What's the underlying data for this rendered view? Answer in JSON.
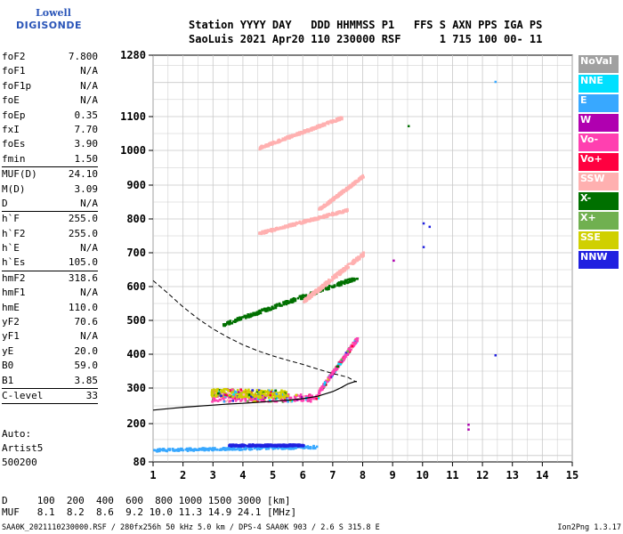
{
  "logo": {
    "line1": "Lowell",
    "line2": "DIGISONDE"
  },
  "header": {
    "line1": "Station YYYY DAY   DDD HHMMSS P1   FFS S AXN PPS IGA PS",
    "line2": "SaoLuis 2021 Apr20 110 230000 RSF      1 715 100 00- 11"
  },
  "params": {
    "group1": [
      {
        "k": "foF2",
        "v": "7.800"
      },
      {
        "k": "foF1",
        "v": "N/A"
      },
      {
        "k": "foF1p",
        "v": "N/A"
      },
      {
        "k": "foE",
        "v": "N/A"
      },
      {
        "k": "foEp",
        "v": "0.35"
      },
      {
        "k": "fxI",
        "v": "7.70"
      },
      {
        "k": "foEs",
        "v": "3.90"
      },
      {
        "k": "fmin",
        "v": "1.50"
      }
    ],
    "group2": [
      {
        "k": "MUF(D)",
        "v": "24.10"
      },
      {
        "k": "M(D)",
        "v": "3.09"
      },
      {
        "k": "D",
        "v": "N/A"
      }
    ],
    "group3": [
      {
        "k": "h`F",
        "v": "255.0"
      },
      {
        "k": "h`F2",
        "v": "255.0"
      },
      {
        "k": "h`E",
        "v": "N/A"
      },
      {
        "k": "h`Es",
        "v": "105.0"
      }
    ],
    "group4": [
      {
        "k": "hmF2",
        "v": "318.6"
      },
      {
        "k": "hmF1",
        "v": "N/A"
      },
      {
        "k": "hmE",
        "v": "110.0"
      },
      {
        "k": "yF2",
        "v": "70.6"
      },
      {
        "k": "yF1",
        "v": "N/A"
      },
      {
        "k": "yE",
        "v": "20.0"
      },
      {
        "k": "B0",
        "v": "59.0"
      },
      {
        "k": "B1",
        "v": "3.85"
      }
    ],
    "group5": [
      {
        "k": "C-level",
        "v": "33"
      }
    ]
  },
  "artist": {
    "line1": "Auto:",
    "line2": "Artist5",
    "line3": "500200"
  },
  "bottom_table": {
    "d_row": "D     100  200  400  600  800 1000 1500 3000 [km]",
    "muf_row": "MUF   8.1  8.2  8.6  9.2 10.0 11.3 14.9 24.1 [MHz]"
  },
  "footer": {
    "left": "SAA0K_2021110230000.RSF / 280fx256h 50 kHz 5.0 km / DPS-4 SAA0K 903 / 2.6 S 315.8 E",
    "right": "Ion2Png 1.3.17"
  },
  "legend": [
    {
      "label": "NoVal",
      "color": "#a0a0a0"
    },
    {
      "label": "NNE",
      "color": "#00e0ff"
    },
    {
      "label": "E",
      "color": "#38a8ff"
    },
    {
      "label": "W",
      "color": "#b000b0"
    },
    {
      "label": "Vo-",
      "color": "#ff40b0"
    },
    {
      "label": "Vo+",
      "color": "#ff0040"
    },
    {
      "label": "SSW",
      "color": "#ffb0b0"
    },
    {
      "label": "X-",
      "color": "#007000"
    },
    {
      "label": "X+",
      "color": "#70b050"
    },
    {
      "label": "SSE",
      "color": "#d0d000"
    },
    {
      "label": "NNW",
      "color": "#2020e0"
    }
  ],
  "chart_data": {
    "type": "scatter",
    "xlabel": "",
    "ylabel": "",
    "xlim": [
      1,
      15
    ],
    "ylim": [
      80,
      1280
    ],
    "x_ticks": [
      1,
      2,
      3,
      4,
      5,
      6,
      7,
      8,
      9,
      10,
      11,
      12,
      13,
      14,
      15
    ],
    "y_ticks": [
      80,
      200,
      300,
      400,
      500,
      600,
      700,
      800,
      900,
      1000,
      1100,
      1280
    ],
    "grid": true,
    "profile_curve": [
      [
        1.0,
        238
      ],
      [
        1.5,
        242
      ],
      [
        2.0,
        246
      ],
      [
        2.5,
        249
      ],
      [
        3.0,
        252
      ],
      [
        3.5,
        255
      ],
      [
        4.0,
        257
      ],
      [
        4.5,
        260
      ],
      [
        5.0,
        263
      ],
      [
        5.5,
        266
      ],
      [
        6.0,
        270
      ],
      [
        6.5,
        277
      ],
      [
        7.0,
        290
      ],
      [
        7.3,
        302
      ],
      [
        7.5,
        312
      ],
      [
        7.7,
        318
      ],
      [
        7.8,
        320
      ]
    ],
    "dashed_curve": [
      [
        1.0,
        618
      ],
      [
        1.5,
        580
      ],
      [
        2.0,
        540
      ],
      [
        2.5,
        505
      ],
      [
        3.0,
        475
      ],
      [
        3.5,
        450
      ],
      [
        4.0,
        428
      ],
      [
        4.5,
        410
      ],
      [
        5.0,
        395
      ],
      [
        5.5,
        382
      ],
      [
        6.0,
        370
      ],
      [
        6.5,
        356
      ],
      [
        7.0,
        343
      ],
      [
        7.5,
        332
      ],
      [
        7.7,
        322
      ],
      [
        7.8,
        318
      ]
    ],
    "traces": [
      {
        "series": "Vo-",
        "x0": 2.9,
        "x1": 6.5,
        "y0": 275,
        "y1": 275,
        "spread": 20
      },
      {
        "series": "SSE",
        "x0": 2.9,
        "x1": 5.5,
        "y0": 290,
        "y1": 285,
        "spread": 22
      },
      {
        "series": "Vo-",
        "x0": 6.5,
        "x1": 7.8,
        "y0": 290,
        "y1": 450,
        "spread": 12
      },
      {
        "series": "X-",
        "x0": 3.3,
        "x1": 7.8,
        "y0": 490,
        "y1": 630,
        "spread": 10
      },
      {
        "series": "SSW",
        "x0": 6.0,
        "x1": 8.0,
        "y0": 560,
        "y1": 700,
        "spread": 12
      },
      {
        "series": "SSW",
        "x0": 4.5,
        "x1": 7.5,
        "y0": 760,
        "y1": 830,
        "spread": 8
      },
      {
        "series": "SSW",
        "x0": 6.5,
        "x1": 8.0,
        "y0": 830,
        "y1": 930,
        "spread": 8
      },
      {
        "series": "SSW",
        "x0": 4.5,
        "x1": 7.3,
        "y0": 1010,
        "y1": 1100,
        "spread": 8
      },
      {
        "series": "E",
        "x0": 1.0,
        "x1": 6.5,
        "y0": 120,
        "y1": 130,
        "spread": 8
      },
      {
        "series": "NNW",
        "x0": 3.5,
        "x1": 6.0,
        "y0": 135,
        "y1": 135,
        "spread": 6
      }
    ],
    "outliers": [
      {
        "series": "E",
        "x": 12.4,
        "y": 1205
      },
      {
        "series": "NNW",
        "x": 10.0,
        "y": 790
      },
      {
        "series": "NNW",
        "x": 10.2,
        "y": 780
      },
      {
        "series": "W",
        "x": 11.5,
        "y": 200
      },
      {
        "series": "W",
        "x": 11.5,
        "y": 185
      },
      {
        "series": "NNW",
        "x": 12.4,
        "y": 400
      },
      {
        "series": "X-",
        "x": 9.5,
        "y": 1075
      },
      {
        "series": "NNW",
        "x": 10.0,
        "y": 720
      },
      {
        "series": "W",
        "x": 9.0,
        "y": 680
      }
    ]
  }
}
